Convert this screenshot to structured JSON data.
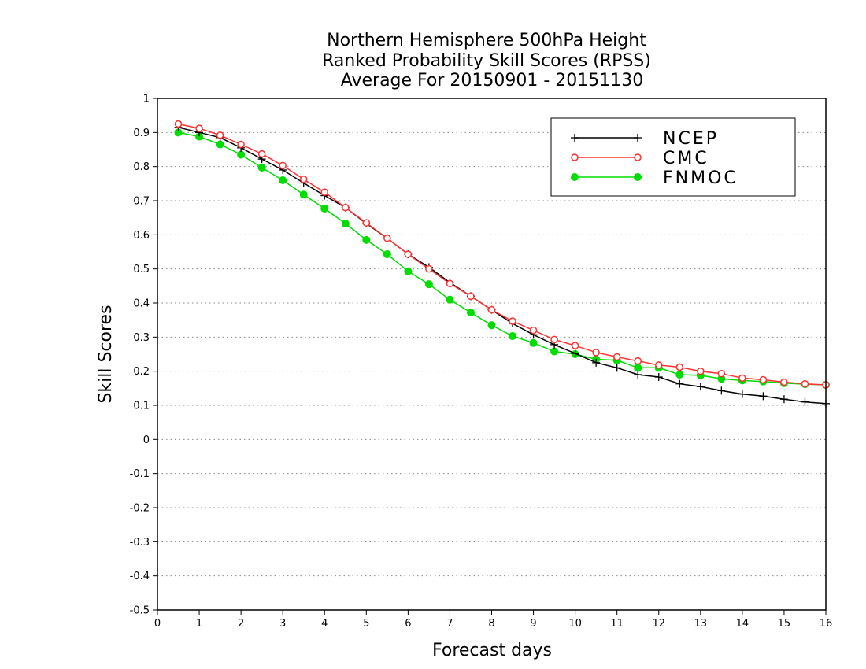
{
  "chart_data": {
    "type": "line",
    "title": [
      "Northern Hemisphere 500hPa Height",
      "Ranked Probability Skill Scores (RPSS)",
      "Average For 20150901 - 20151130"
    ],
    "xlabel": "Forecast days",
    "ylabel": "Skill Scores",
    "xlim": [
      0,
      16
    ],
    "ylim": [
      -0.5,
      1
    ],
    "xticks": [
      0,
      1,
      2,
      3,
      4,
      5,
      6,
      7,
      8,
      9,
      10,
      11,
      12,
      13,
      14,
      15,
      16
    ],
    "xtick_labels": [
      "0",
      "1",
      "2",
      "3",
      "4",
      "5",
      "6",
      "7",
      "8",
      "9",
      "10",
      "11",
      "12",
      "13",
      "14",
      "15",
      "16"
    ],
    "yticks": [
      -0.5,
      -0.4,
      -0.3,
      -0.2,
      -0.1,
      0,
      0.1,
      0.2,
      0.3,
      0.4,
      0.5,
      0.6,
      0.7,
      0.8,
      0.9,
      1
    ],
    "ytick_labels": [
      "-0.5",
      "-0.4",
      "-0.3",
      "-0.2",
      "-0.1",
      "0",
      "0.1",
      "0.2",
      "0.3",
      "0.4",
      "0.5",
      "0.6",
      "0.7",
      "0.8",
      "0.9",
      "1"
    ],
    "grid": "horizontal-dotted",
    "legend_position": "top-right",
    "x": [
      0.5,
      1,
      1.5,
      2,
      2.5,
      3,
      3.5,
      4,
      4.5,
      5,
      5.5,
      6,
      6.5,
      7,
      7.5,
      8,
      8.5,
      9,
      9.5,
      10,
      10.5,
      11,
      11.5,
      12,
      12.5,
      13,
      13.5,
      14,
      14.5,
      15,
      15.5,
      16
    ],
    "series": [
      {
        "name": "NCEP",
        "marker": "plus",
        "color": "#000000",
        "values": [
          0.915,
          0.9,
          0.885,
          0.855,
          0.822,
          0.79,
          0.752,
          0.715,
          0.68,
          0.633,
          0.59,
          0.543,
          0.505,
          0.46,
          0.42,
          0.38,
          0.34,
          0.307,
          0.278,
          0.252,
          0.225,
          0.21,
          0.19,
          0.183,
          0.163,
          0.155,
          0.143,
          0.133,
          0.127,
          0.118,
          0.11,
          0.105
        ]
      },
      {
        "name": "CMC",
        "marker": "open-circle",
        "color": "#ff3030",
        "values": [
          0.925,
          0.912,
          0.892,
          0.865,
          0.837,
          0.803,
          0.763,
          0.725,
          0.68,
          0.635,
          0.59,
          0.543,
          0.5,
          0.457,
          0.42,
          0.38,
          0.347,
          0.32,
          0.293,
          0.275,
          0.255,
          0.242,
          0.23,
          0.218,
          0.212,
          0.2,
          0.193,
          0.18,
          0.175,
          0.168,
          0.163,
          0.16
        ]
      },
      {
        "name": "FNMOC",
        "marker": "filled-circle",
        "color": "#00dd00",
        "values": [
          0.9,
          0.888,
          0.865,
          0.835,
          0.797,
          0.76,
          0.718,
          0.677,
          0.633,
          0.585,
          0.543,
          0.493,
          0.455,
          0.41,
          0.372,
          0.335,
          0.303,
          0.283,
          0.258,
          0.25,
          0.235,
          0.232,
          0.21,
          0.21,
          0.19,
          0.188,
          0.178,
          0.173,
          0.17,
          0.165,
          0.162,
          0.16
        ]
      }
    ]
  }
}
